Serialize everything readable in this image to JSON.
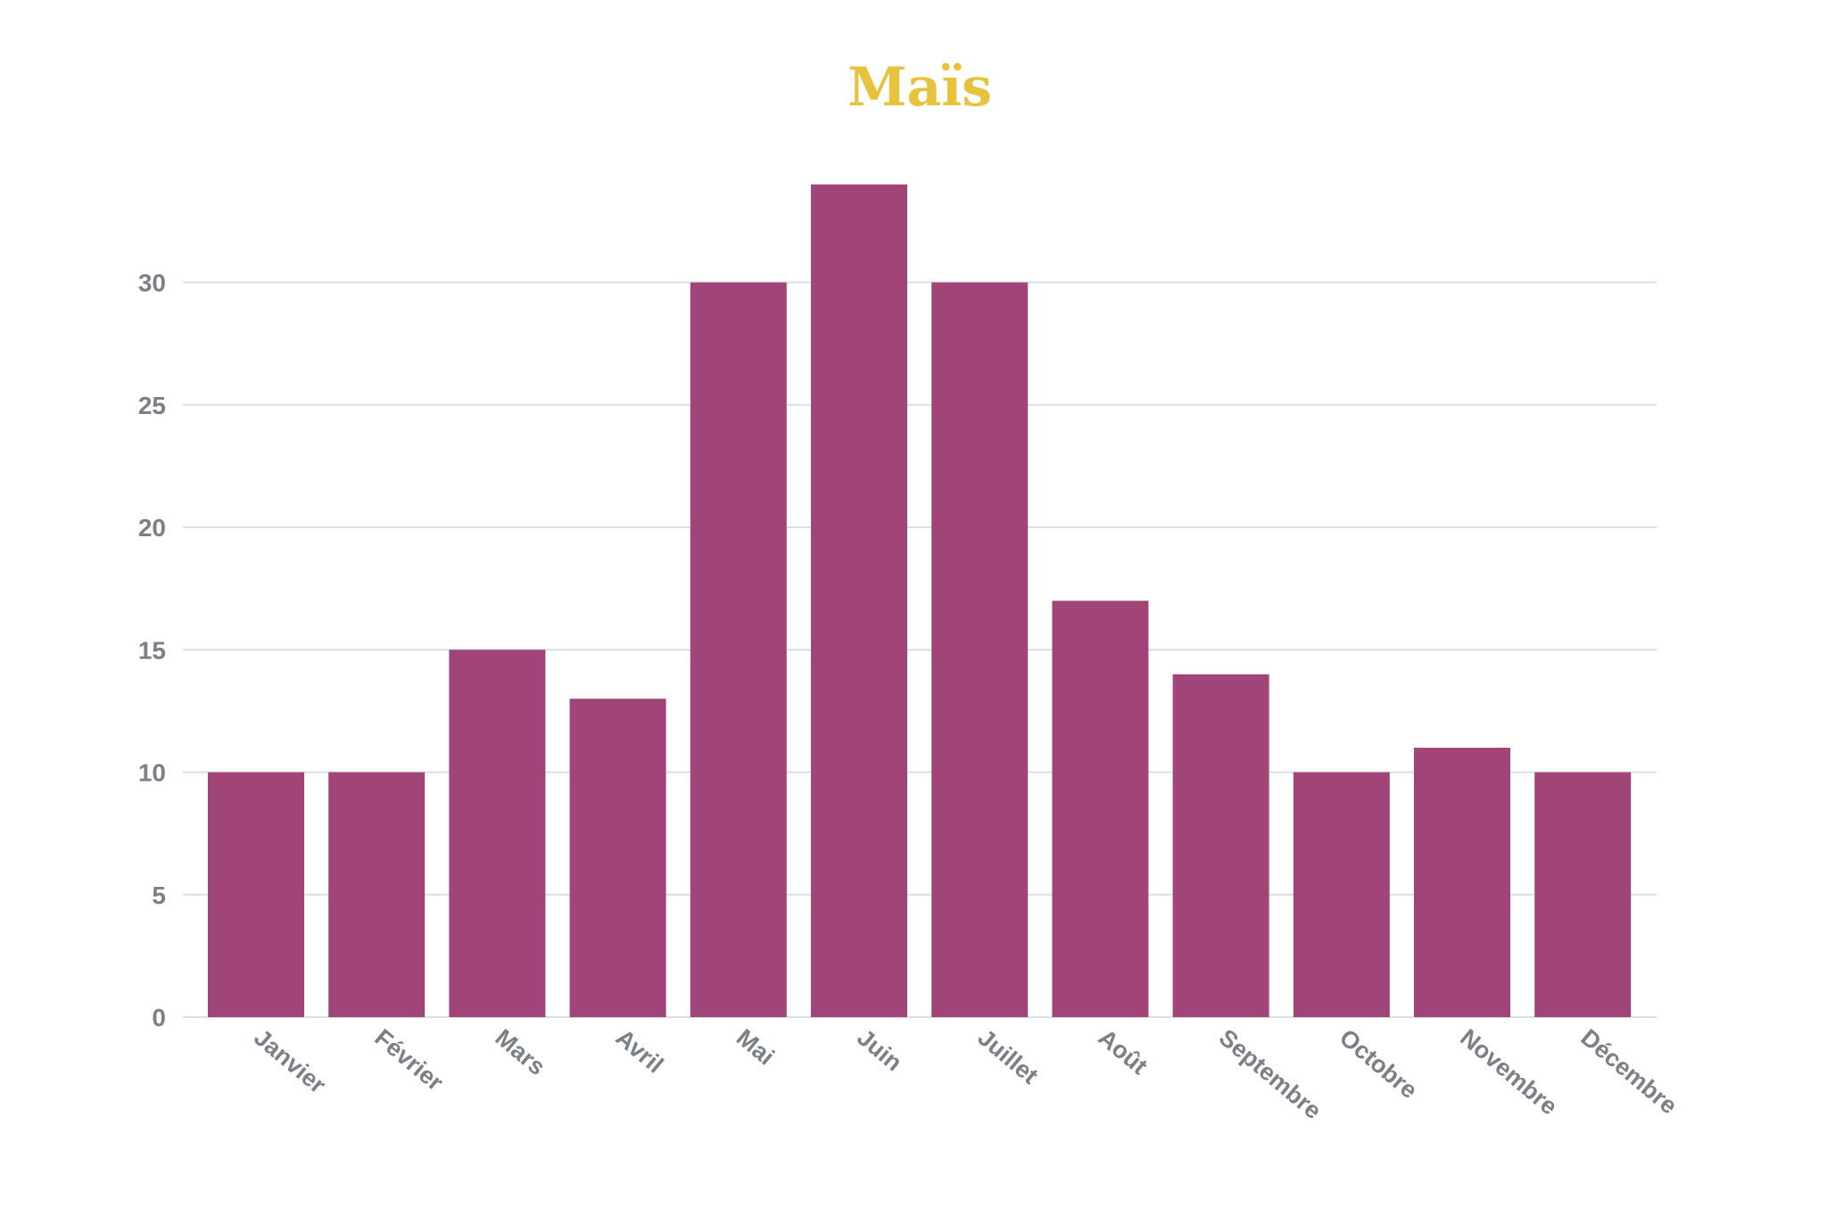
{
  "chart_data": {
    "type": "bar",
    "title": "Maïs",
    "xlabel": "",
    "ylabel": "",
    "categories": [
      "Janvier",
      "Février",
      "Mars",
      "Avril",
      "Mai",
      "Juin",
      "Juillet",
      "Août",
      "Septembre",
      "Octobre",
      "Novembre",
      "Décembre"
    ],
    "series": [
      {
        "values": [
          10,
          10,
          15,
          13,
          30,
          34,
          30,
          17,
          14,
          10,
          11,
          10
        ]
      }
    ],
    "ylim": [
      0,
      34
    ],
    "yticks": [
      0,
      5,
      10,
      15,
      20,
      25,
      30
    ],
    "grid": true,
    "legend": "none",
    "colors": {
      "bar": "#a14477",
      "title": "#e8c23a",
      "grid": "#d5e1ea",
      "axis_text": "#7b8087"
    }
  }
}
